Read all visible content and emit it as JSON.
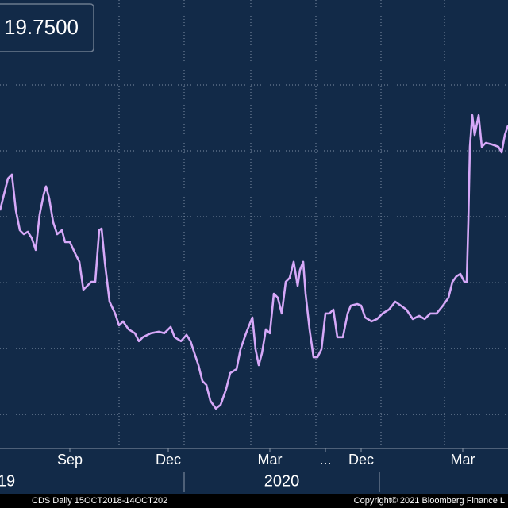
{
  "chart_data": {
    "type": "line",
    "readout": "19.7500",
    "color": "#d6a8f8",
    "xlim": [
      0,
      640
    ],
    "ylim": [
      8.71,
      25.72
    ],
    "ygrid": [
      10,
      12.5,
      15,
      17.5,
      20,
      22.5
    ],
    "xgrid": [
      150,
      232,
      316,
      398,
      480,
      560
    ],
    "xticks": [
      {
        "value": 88,
        "label": "Sep"
      },
      {
        "value": 212,
        "label": "Dec"
      },
      {
        "value": 340,
        "label": "Mar"
      },
      {
        "value": 410,
        "label": "..."
      },
      {
        "value": 455,
        "label": "Dec"
      },
      {
        "value": 583,
        "label": "Mar"
      }
    ],
    "years": [
      {
        "value": 8,
        "label": "19"
      },
      {
        "value": 355,
        "label": "2020"
      }
    ],
    "footer_left": "CDS  Daily 15OCT2018-14OCT202",
    "footer_right": "Copyright© 2021 Bloomberg Finance L",
    "x": [
      0,
      10,
      15,
      20,
      25,
      30,
      35,
      40,
      45,
      50,
      55,
      58,
      62,
      67,
      72,
      78,
      82,
      88,
      95,
      100,
      105,
      110,
      115,
      120,
      125,
      128,
      132,
      138,
      145,
      150,
      155,
      162,
      170,
      175,
      180,
      190,
      200,
      207,
      215,
      220,
      228,
      235,
      240,
      245,
      250,
      255,
      260,
      265,
      272,
      278,
      285,
      290,
      298,
      303,
      310,
      318,
      322,
      326,
      330,
      335,
      340,
      345,
      350,
      355,
      360,
      365,
      370,
      375,
      378,
      382,
      385,
      390,
      395,
      400,
      405,
      410,
      415,
      420,
      425,
      432,
      438,
      442,
      450,
      455,
      460,
      468,
      475,
      482,
      490,
      498,
      505,
      512,
      520,
      528,
      535,
      542,
      550,
      558,
      565,
      570,
      575,
      580,
      585,
      588,
      590,
      592,
      595,
      598,
      603,
      607,
      612,
      620,
      628,
      632,
      636,
      640
    ],
    "values": [
      17.74,
      18.95,
      19.1,
      17.74,
      16.99,
      16.84,
      16.93,
      16.69,
      16.24,
      17.59,
      18.34,
      18.65,
      18.19,
      17.29,
      16.84,
      16.99,
      16.54,
      16.54,
      16.09,
      15.79,
      14.73,
      14.88,
      15.03,
      15.03,
      16.99,
      17.05,
      15.79,
      14.28,
      13.83,
      13.38,
      13.53,
      13.23,
      13.08,
      12.78,
      12.93,
      13.08,
      13.14,
      13.08,
      13.32,
      12.93,
      12.78,
      13.02,
      12.78,
      12.32,
      11.87,
      11.27,
      11.12,
      10.52,
      10.22,
      10.37,
      10.97,
      11.57,
      11.72,
      12.47,
      13.08,
      13.68,
      12.47,
      11.87,
      12.32,
      13.23,
      13.08,
      14.58,
      14.43,
      13.83,
      15.03,
      15.18,
      15.79,
      14.88,
      15.48,
      15.79,
      14.58,
      13.23,
      12.17,
      12.17,
      12.47,
      13.83,
      13.83,
      13.98,
      12.93,
      12.93,
      13.83,
      14.13,
      14.19,
      14.13,
      13.68,
      13.53,
      13.62,
      13.83,
      13.98,
      14.28,
      14.13,
      13.98,
      13.62,
      13.74,
      13.62,
      13.83,
      13.83,
      14.13,
      14.43,
      15.03,
      15.24,
      15.33,
      15.03,
      15.03,
      17.29,
      20.15,
      21.35,
      20.6,
      21.35,
      20.15,
      20.3,
      20.24,
      20.15,
      19.94,
      20.6,
      20.96
    ]
  }
}
